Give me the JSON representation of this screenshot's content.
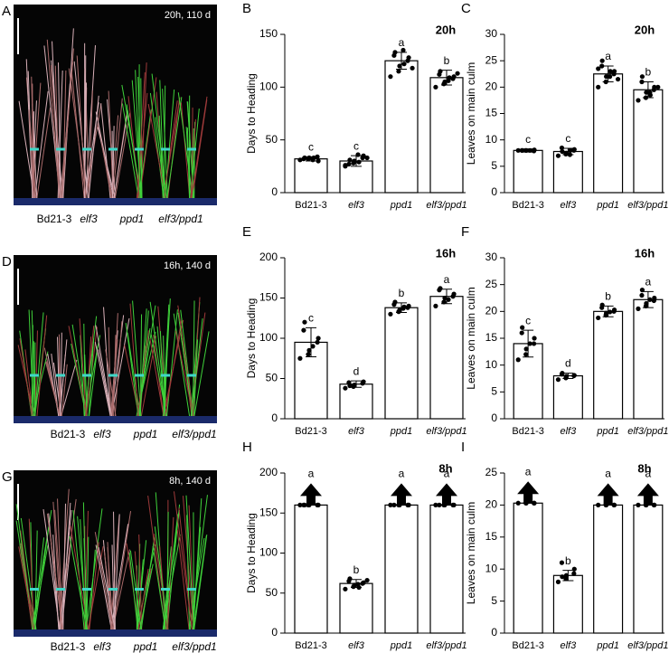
{
  "panels": [
    {
      "letter": "A",
      "caption": "20h, 110 d",
      "labels": [
        "Bd21-3",
        "elf3",
        "ppd1",
        "elf3/ppd1"
      ]
    },
    {
      "letter": "D",
      "caption": "16h, 140 d",
      "labels": [
        "Bd21-3",
        "elf3",
        "ppd1",
        "elf3/ppd1"
      ]
    },
    {
      "letter": "G",
      "caption": "8h, 140 d",
      "labels": [
        "Bd21-3",
        "elf3",
        "ppd1",
        "elf3/ppd1"
      ]
    }
  ],
  "chart_data": [
    {
      "type": "bar",
      "letter": "B",
      "title": "20h",
      "ylabel": "Days to Heading",
      "categories": [
        "Bd21-3",
        "elf3",
        "ppd1",
        "elf3/ppd1"
      ],
      "values": [
        32,
        30,
        125,
        109
      ],
      "errors": [
        2,
        5,
        8,
        7
      ],
      "letters": [
        "c",
        "c",
        "a",
        "b"
      ],
      "points": [
        [
          31,
          32,
          33,
          34,
          30,
          32,
          33,
          31,
          33
        ],
        [
          25,
          28,
          30,
          33,
          35,
          27,
          31,
          36,
          29,
          33,
          26
        ],
        [
          110,
          115,
          120,
          125,
          128,
          130,
          133,
          135,
          122,
          118
        ],
        [
          100,
          103,
          105,
          108,
          110,
          112,
          115,
          106,
          109,
          113
        ]
      ],
      "ylim": [
        0,
        150
      ],
      "yticks": [
        0,
        50,
        100,
        150
      ],
      "color": "#ffffff"
    },
    {
      "type": "bar",
      "letter": "C",
      "title": "20h",
      "ylabel": "Leaves on main culm",
      "categories": [
        "Bd21-3",
        "elf3",
        "ppd1",
        "elf3/ppd1"
      ],
      "values": [
        8,
        7.8,
        22.5,
        19.5
      ],
      "errors": [
        0.3,
        0.6,
        1.5,
        1.5
      ],
      "letters": [
        "c",
        "c",
        "a",
        "b"
      ],
      "points": [
        [
          8,
          8,
          8,
          7.9,
          8.1,
          8,
          8,
          8
        ],
        [
          7,
          7.3,
          7.5,
          8,
          8.2,
          8.5,
          7.8,
          7.2,
          8
        ],
        [
          20,
          21,
          22,
          22.5,
          23,
          24,
          25,
          22,
          23,
          21.5,
          23.5
        ],
        [
          17.5,
          18,
          19,
          19.5,
          20,
          21,
          22,
          19,
          18.5,
          20
        ]
      ],
      "ylim": [
        0,
        30
      ],
      "yticks": [
        0,
        5,
        10,
        15,
        20,
        25,
        30
      ],
      "color": "#ffffff"
    },
    {
      "type": "bar",
      "letter": "E",
      "title": "16h",
      "ylabel": "Days to Heading",
      "categories": [
        "Bd21-3",
        "elf3",
        "ppd1",
        "elf3/ppd1"
      ],
      "values": [
        95,
        43,
        138,
        152
      ],
      "errors": [
        18,
        4,
        6,
        9
      ],
      "letters": [
        "c",
        "d",
        "b",
        "a"
      ],
      "points": [
        [
          75,
          80,
          85,
          95,
          100,
          110,
          120,
          90
        ],
        [
          38,
          40,
          42,
          44,
          46,
          45,
          41
        ],
        [
          130,
          133,
          135,
          138,
          140,
          142,
          145,
          137,
          139
        ],
        [
          140,
          145,
          150,
          152,
          155,
          160,
          162,
          148
        ]
      ],
      "ylim": [
        0,
        200
      ],
      "yticks": [
        0,
        50,
        100,
        150,
        200
      ],
      "color": "#ffffff"
    },
    {
      "type": "bar",
      "letter": "F",
      "title": "16h",
      "ylabel": "Leaves on main culm",
      "categories": [
        "Bd21-3",
        "elf3",
        "ppd1",
        "elf3/ppd1"
      ],
      "values": [
        14,
        8,
        20,
        22.2
      ],
      "errors": [
        2.5,
        0.5,
        1,
        1.5
      ],
      "letters": [
        "c",
        "d",
        "b",
        "a"
      ],
      "points": [
        [
          11,
          12,
          13,
          14,
          15,
          16,
          17,
          14
        ],
        [
          7.3,
          7.6,
          7.9,
          8,
          8.1,
          8.3,
          8.5
        ],
        [
          18.8,
          19.3,
          19.7,
          20,
          20.3,
          20.7,
          21.2,
          19.9
        ],
        [
          20.5,
          21,
          21.5,
          22,
          22.5,
          23,
          24,
          22.2
        ]
      ],
      "ylim": [
        0,
        30
      ],
      "yticks": [
        0,
        5,
        10,
        15,
        20,
        25,
        30
      ],
      "color": "#ffffff"
    },
    {
      "type": "bar",
      "letter": "H",
      "title": "8h",
      "ylabel": "Days to Heading",
      "categories": [
        "Bd21-3",
        "elf3",
        "ppd1",
        "elf3/ppd1"
      ],
      "values": [
        160,
        62,
        160,
        160
      ],
      "errors": [
        0,
        5,
        0,
        0
      ],
      "letters": [
        "a",
        "b",
        "a",
        "a"
      ],
      "arrows": [
        true,
        false,
        true,
        true
      ],
      "points": [
        [
          160,
          160,
          160,
          160,
          160,
          160,
          160
        ],
        [
          55,
          58,
          60,
          62,
          63,
          65,
          68,
          61,
          57,
          66
        ],
        [
          160,
          160,
          160,
          160,
          160,
          160
        ],
        [
          160,
          160,
          160,
          160,
          160,
          160
        ]
      ],
      "ylim": [
        0,
        200
      ],
      "yticks": [
        0,
        50,
        100,
        150,
        200
      ],
      "color": "#ffffff"
    },
    {
      "type": "bar",
      "letter": "I",
      "title": "8h",
      "ylabel": "Leaves on main culm",
      "categories": [
        "Bd21-3",
        "elf3",
        "ppd1",
        "elf3/ppd1"
      ],
      "values": [
        20.3,
        9,
        20,
        20
      ],
      "errors": [
        0,
        0.8,
        0,
        0
      ],
      "letters": [
        "a",
        "b",
        "a",
        "a"
      ],
      "arrows": [
        true,
        false,
        true,
        true
      ],
      "points": [
        [
          20.3,
          20.3,
          20.3,
          20.3,
          20.3
        ],
        [
          8,
          8.5,
          9,
          9.3,
          10,
          11,
          8.8
        ],
        [
          20,
          20,
          20,
          20,
          20
        ],
        [
          20,
          20,
          20,
          20,
          20
        ]
      ],
      "ylim": [
        0,
        25
      ],
      "yticks": [
        0,
        5,
        10,
        15,
        20,
        25
      ],
      "color": "#ffffff"
    }
  ]
}
